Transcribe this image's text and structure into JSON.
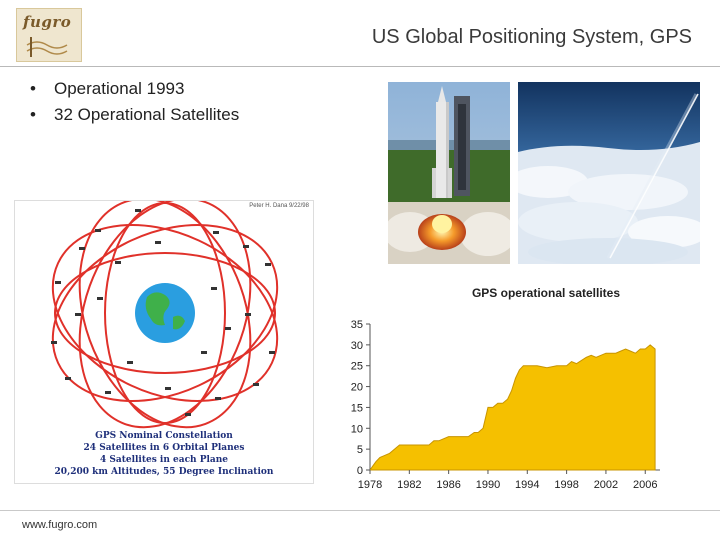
{
  "logo": {
    "text": "fugro"
  },
  "header": {
    "title": "US Global Positioning System, GPS"
  },
  "bullets": [
    "Operational 1993",
    "32 Operational Satellites"
  ],
  "constellation": {
    "credit": "Peter H. Dana 9/22/98",
    "caption": [
      "GPS Nominal Constellation",
      "24 Satellites in 6 Orbital Planes",
      "4 Satellites in each Plane",
      "20,200 km Altitudes, 55 Degree Inclination"
    ]
  },
  "footer": {
    "url": "www.fugro.com"
  },
  "colors": {
    "area_fill": "#f5c000",
    "area_stroke": "#c89400",
    "orbit": "#e0312a",
    "earth": "#2a9ee0"
  },
  "chart_data": {
    "type": "area",
    "title": "GPS operational satellites",
    "xlabel": "",
    "ylabel": "",
    "xlim": [
      1978,
      2007.5
    ],
    "ylim": [
      0,
      35
    ],
    "xticks": [
      "1978",
      "1982",
      "1986",
      "1990",
      "1994",
      "1998",
      "2002",
      "2006"
    ],
    "yticks": [
      "0",
      "5",
      "10",
      "15",
      "20",
      "25",
      "30",
      "35"
    ],
    "grid": false,
    "series": [
      {
        "x": [
          1978,
          1978.3,
          1978.6,
          1979,
          1980,
          1980.5,
          1981,
          1983,
          1984,
          1984.5,
          1985,
          1986,
          1988,
          1988.6,
          1989,
          1989.5,
          1990,
          1990.5,
          1991,
          1991.5,
          1992,
          1992.4,
          1992.8,
          1993.2,
          1993.6,
          1994,
          1995,
          1996,
          1997,
          1998,
          1998.5,
          1999,
          2000,
          2000.5,
          2001,
          2002,
          2003,
          2003.5,
          2004,
          2004.5,
          2005,
          2005.5,
          2006,
          2006.5,
          2007
        ],
        "y": [
          0,
          1,
          2,
          3,
          4,
          5,
          6,
          6,
          6,
          7,
          7,
          8,
          8,
          9,
          9,
          10,
          15,
          15,
          16,
          16,
          17,
          19,
          22,
          24,
          25,
          25,
          25,
          24.5,
          25,
          25,
          26,
          25.5,
          27,
          27.5,
          27,
          28,
          28,
          28.5,
          29,
          28.5,
          28,
          29,
          29,
          30,
          29
        ]
      }
    ]
  }
}
